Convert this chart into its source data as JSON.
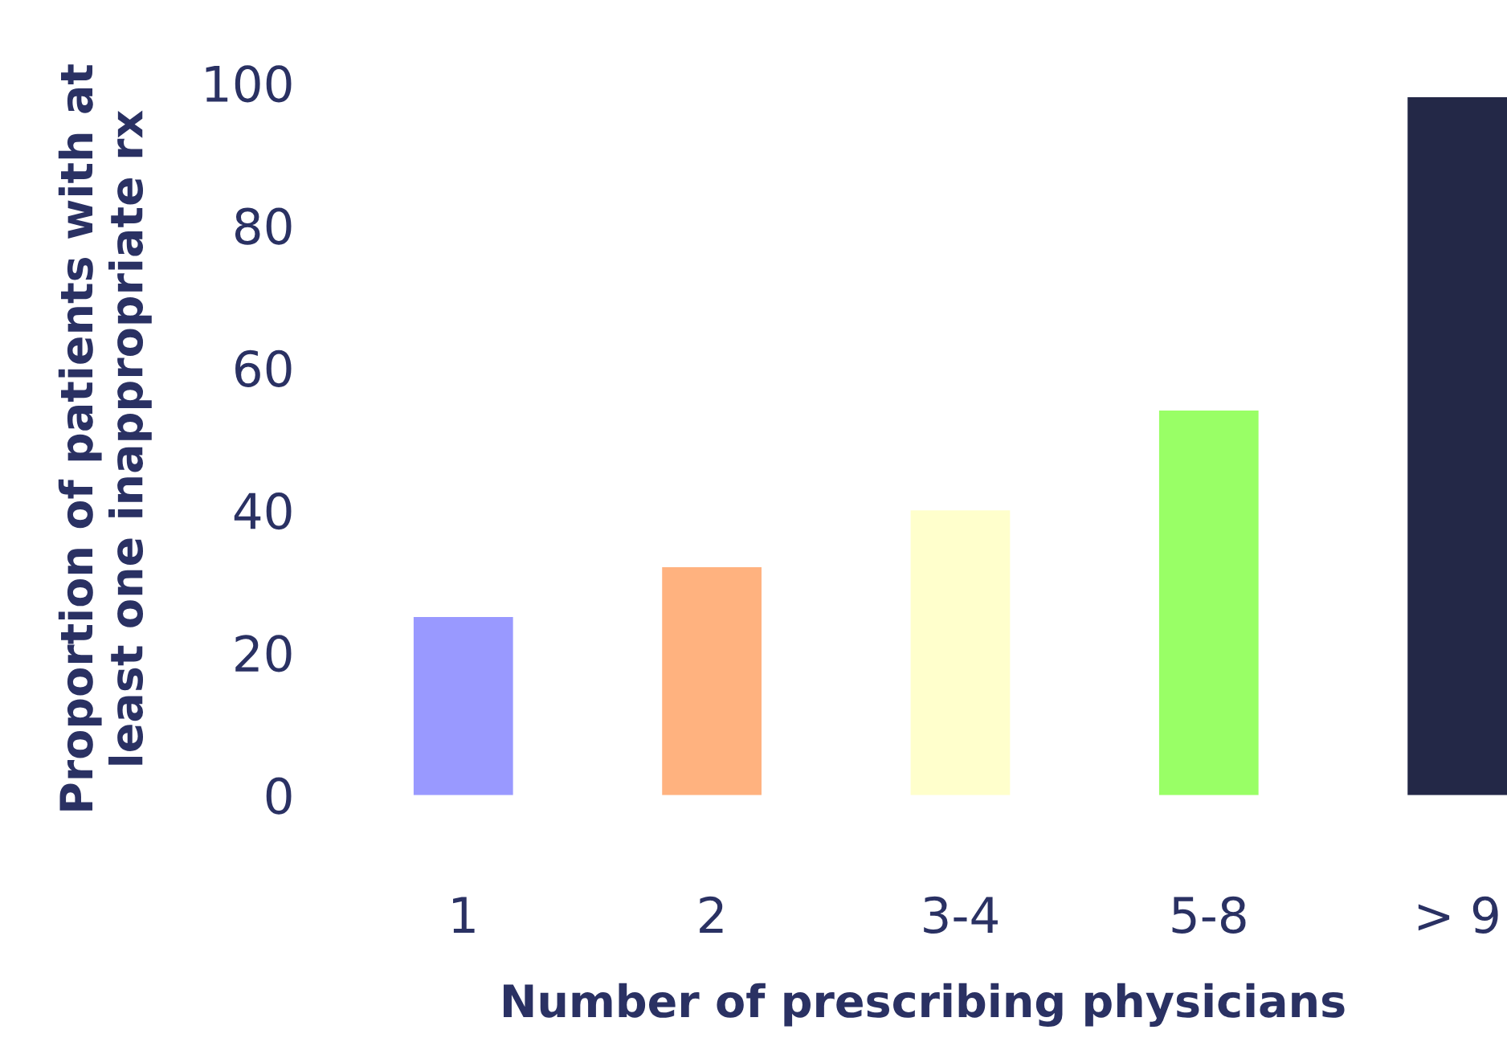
{
  "chart_data": {
    "type": "bar",
    "xlabel": "Number of prescribing physicians",
    "ylabel": "Proportion of patients with at\nleast one inappropriate rx",
    "categories": [
      "1",
      "2",
      "3-4",
      "5-8",
      "> 9"
    ],
    "values": [
      25,
      32,
      40,
      54,
      98
    ],
    "colors": [
      "#9999ff",
      "#ffb27f",
      "#ffffcc",
      "#99ff66",
      "#232847"
    ],
    "ylim": [
      0,
      100
    ],
    "yticks": [
      0,
      20,
      40,
      60,
      80,
      100
    ],
    "grid": false,
    "legend": false
  }
}
